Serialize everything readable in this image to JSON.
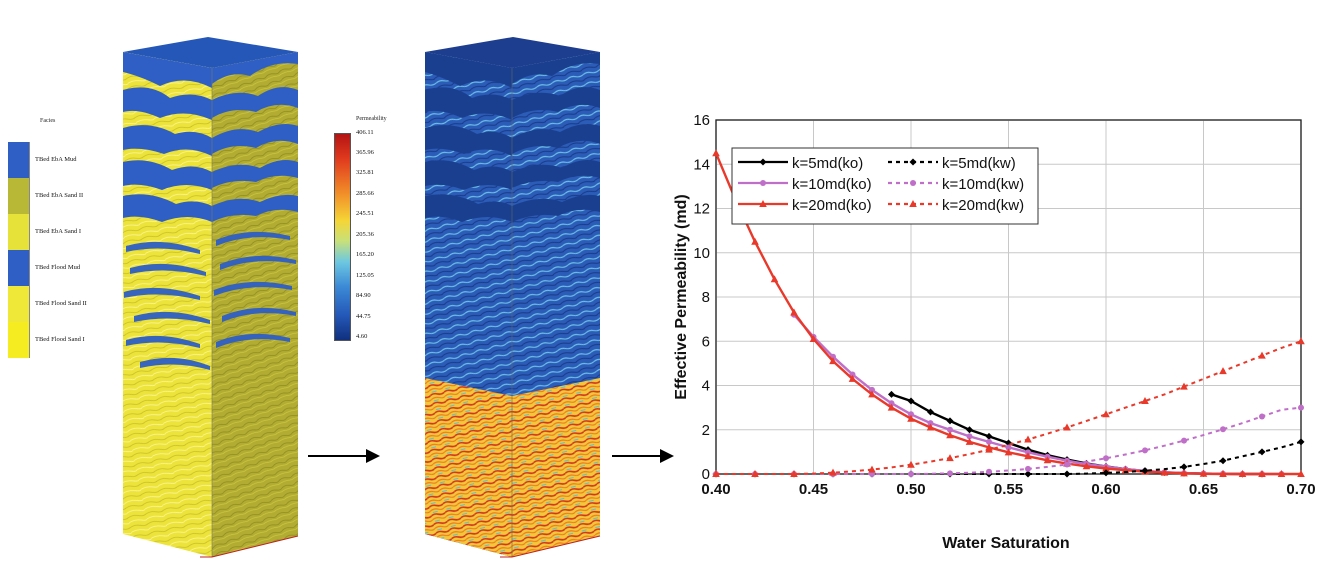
{
  "facies_legend": {
    "title": "Facies",
    "items": [
      {
        "label": "TBed EbA Mud",
        "color": "#2f5fc4"
      },
      {
        "label": "TBed EbA Sand II",
        "color": "#b8b836"
      },
      {
        "label": "TBed EbA Sand I",
        "color": "#e6e23a"
      },
      {
        "label": "TBed Flood Mud",
        "color": "#2f5fc4"
      },
      {
        "label": "TBed Flood Sand II",
        "color": "#f0e838"
      },
      {
        "label": "TBed Flood Sand I",
        "color": "#f5ec22"
      }
    ]
  },
  "permeability_legend": {
    "title": "Permeability",
    "ticks": [
      "406.11",
      "365.96",
      "325.81",
      "285.66",
      "245.51",
      "205.36",
      "165.20",
      "125.05",
      "84.90",
      "44.75",
      "4.60"
    ]
  },
  "colors": {
    "mud_blue": "#2f5fc4",
    "sand_yellow": "#ede43a",
    "dark_blue": "#1b3f8f",
    "k5": "#000000",
    "k10": "#c06fc8",
    "k20": "#e8392a"
  },
  "chart_data": {
    "type": "line",
    "xlabel": "Water Saturation",
    "ylabel": "Effective Permeability (md)",
    "xlim": [
      0.4,
      0.7
    ],
    "ylim": [
      0,
      16
    ],
    "xticks": [
      "0.40",
      "0.45",
      "0.50",
      "0.55",
      "0.60",
      "0.65",
      "0.70"
    ],
    "yticks": [
      "0",
      "2",
      "4",
      "6",
      "8",
      "10",
      "12",
      "14",
      "16"
    ],
    "grid": true,
    "legend_position": "top-left",
    "series": [
      {
        "name": "k=5md(ko)",
        "color": "#000000",
        "style": "solid",
        "marker": "diamond",
        "x": [
          0.49,
          0.5,
          0.51,
          0.52,
          0.53,
          0.54,
          0.55,
          0.56,
          0.57,
          0.58,
          0.59,
          0.6,
          0.61,
          0.62,
          0.63,
          0.64,
          0.65,
          0.66,
          0.67,
          0.68
        ],
        "y": [
          3.6,
          3.3,
          2.8,
          2.4,
          2.0,
          1.7,
          1.4,
          1.1,
          0.85,
          0.65,
          0.48,
          0.34,
          0.22,
          0.13,
          0.07,
          0.04,
          0.02,
          0.01,
          0.0,
          0.0
        ]
      },
      {
        "name": "k=10md(ko)",
        "color": "#c06fc8",
        "style": "solid",
        "marker": "circle",
        "x": [
          0.44,
          0.45,
          0.46,
          0.47,
          0.48,
          0.49,
          0.5,
          0.51,
          0.52,
          0.53,
          0.54,
          0.55,
          0.56,
          0.57,
          0.58,
          0.59,
          0.6,
          0.61,
          0.62,
          0.63,
          0.64,
          0.65,
          0.66,
          0.67,
          0.68,
          0.69
        ],
        "y": [
          7.2,
          6.2,
          5.3,
          4.5,
          3.8,
          3.2,
          2.7,
          2.3,
          2.0,
          1.7,
          1.45,
          1.2,
          0.98,
          0.78,
          0.6,
          0.45,
          0.33,
          0.22,
          0.14,
          0.08,
          0.04,
          0.02,
          0.01,
          0.0,
          0.0,
          0.0
        ]
      },
      {
        "name": "k=20md(ko)",
        "color": "#e8392a",
        "style": "solid",
        "marker": "triangle",
        "x": [
          0.4,
          0.41,
          0.42,
          0.43,
          0.44,
          0.45,
          0.46,
          0.47,
          0.48,
          0.49,
          0.5,
          0.51,
          0.52,
          0.53,
          0.54,
          0.55,
          0.56,
          0.57,
          0.58,
          0.59,
          0.6,
          0.61,
          0.62,
          0.63,
          0.64,
          0.65,
          0.66,
          0.67,
          0.68,
          0.69,
          0.7
        ],
        "y": [
          14.5,
          12.4,
          10.5,
          8.8,
          7.3,
          6.1,
          5.1,
          4.3,
          3.6,
          3.0,
          2.5,
          2.1,
          1.75,
          1.45,
          1.2,
          0.98,
          0.8,
          0.62,
          0.47,
          0.35,
          0.25,
          0.17,
          0.11,
          0.06,
          0.03,
          0.01,
          0.0,
          0.0,
          0.0,
          0.0,
          0.0
        ]
      },
      {
        "name": "k=5md(kw)",
        "color": "#000000",
        "style": "dashed",
        "marker": "diamond",
        "x": [
          0.4,
          0.41,
          0.42,
          0.43,
          0.44,
          0.45,
          0.46,
          0.47,
          0.48,
          0.49,
          0.5,
          0.51,
          0.52,
          0.53,
          0.54,
          0.55,
          0.56,
          0.57,
          0.58,
          0.59,
          0.6,
          0.61,
          0.62,
          0.63,
          0.64,
          0.65,
          0.66,
          0.67,
          0.68,
          0.69,
          0.7
        ],
        "y": [
          0,
          0,
          0,
          0,
          0,
          0,
          0,
          0,
          0,
          0,
          0,
          0,
          0,
          0,
          0,
          0,
          0,
          0,
          0,
          0.02,
          0.05,
          0.09,
          0.15,
          0.22,
          0.32,
          0.45,
          0.6,
          0.8,
          1.0,
          1.2,
          1.45
        ]
      },
      {
        "name": "k=10md(kw)",
        "color": "#c06fc8",
        "style": "dashed",
        "marker": "circle",
        "x": [
          0.4,
          0.41,
          0.42,
          0.43,
          0.44,
          0.45,
          0.46,
          0.47,
          0.48,
          0.49,
          0.5,
          0.51,
          0.52,
          0.53,
          0.54,
          0.55,
          0.56,
          0.57,
          0.58,
          0.59,
          0.6,
          0.61,
          0.62,
          0.63,
          0.64,
          0.65,
          0.66,
          0.67,
          0.68,
          0.69,
          0.7
        ],
        "y": [
          0,
          0,
          0,
          0,
          0,
          0,
          0,
          0,
          0,
          0,
          0,
          0.01,
          0.03,
          0.06,
          0.1,
          0.16,
          0.23,
          0.32,
          0.43,
          0.56,
          0.71,
          0.88,
          1.07,
          1.28,
          1.51,
          1.76,
          2.02,
          2.3,
          2.6,
          2.9,
          3.0
        ]
      },
      {
        "name": "k=20md(kw)",
        "color": "#e8392a",
        "style": "dashed",
        "marker": "triangle",
        "x": [
          0.4,
          0.41,
          0.42,
          0.43,
          0.44,
          0.45,
          0.46,
          0.47,
          0.48,
          0.49,
          0.5,
          0.51,
          0.52,
          0.53,
          0.54,
          0.55,
          0.56,
          0.57,
          0.58,
          0.59,
          0.6,
          0.61,
          0.62,
          0.63,
          0.64,
          0.65,
          0.66,
          0.67,
          0.68,
          0.69,
          0.7
        ],
        "y": [
          0,
          0,
          0,
          0,
          0,
          0.02,
          0.06,
          0.12,
          0.2,
          0.3,
          0.42,
          0.56,
          0.72,
          0.9,
          1.1,
          1.32,
          1.56,
          1.82,
          2.1,
          2.4,
          2.7,
          3.0,
          3.3,
          3.6,
          3.95,
          4.3,
          4.65,
          5.0,
          5.35,
          5.7,
          6.0
        ]
      }
    ]
  }
}
